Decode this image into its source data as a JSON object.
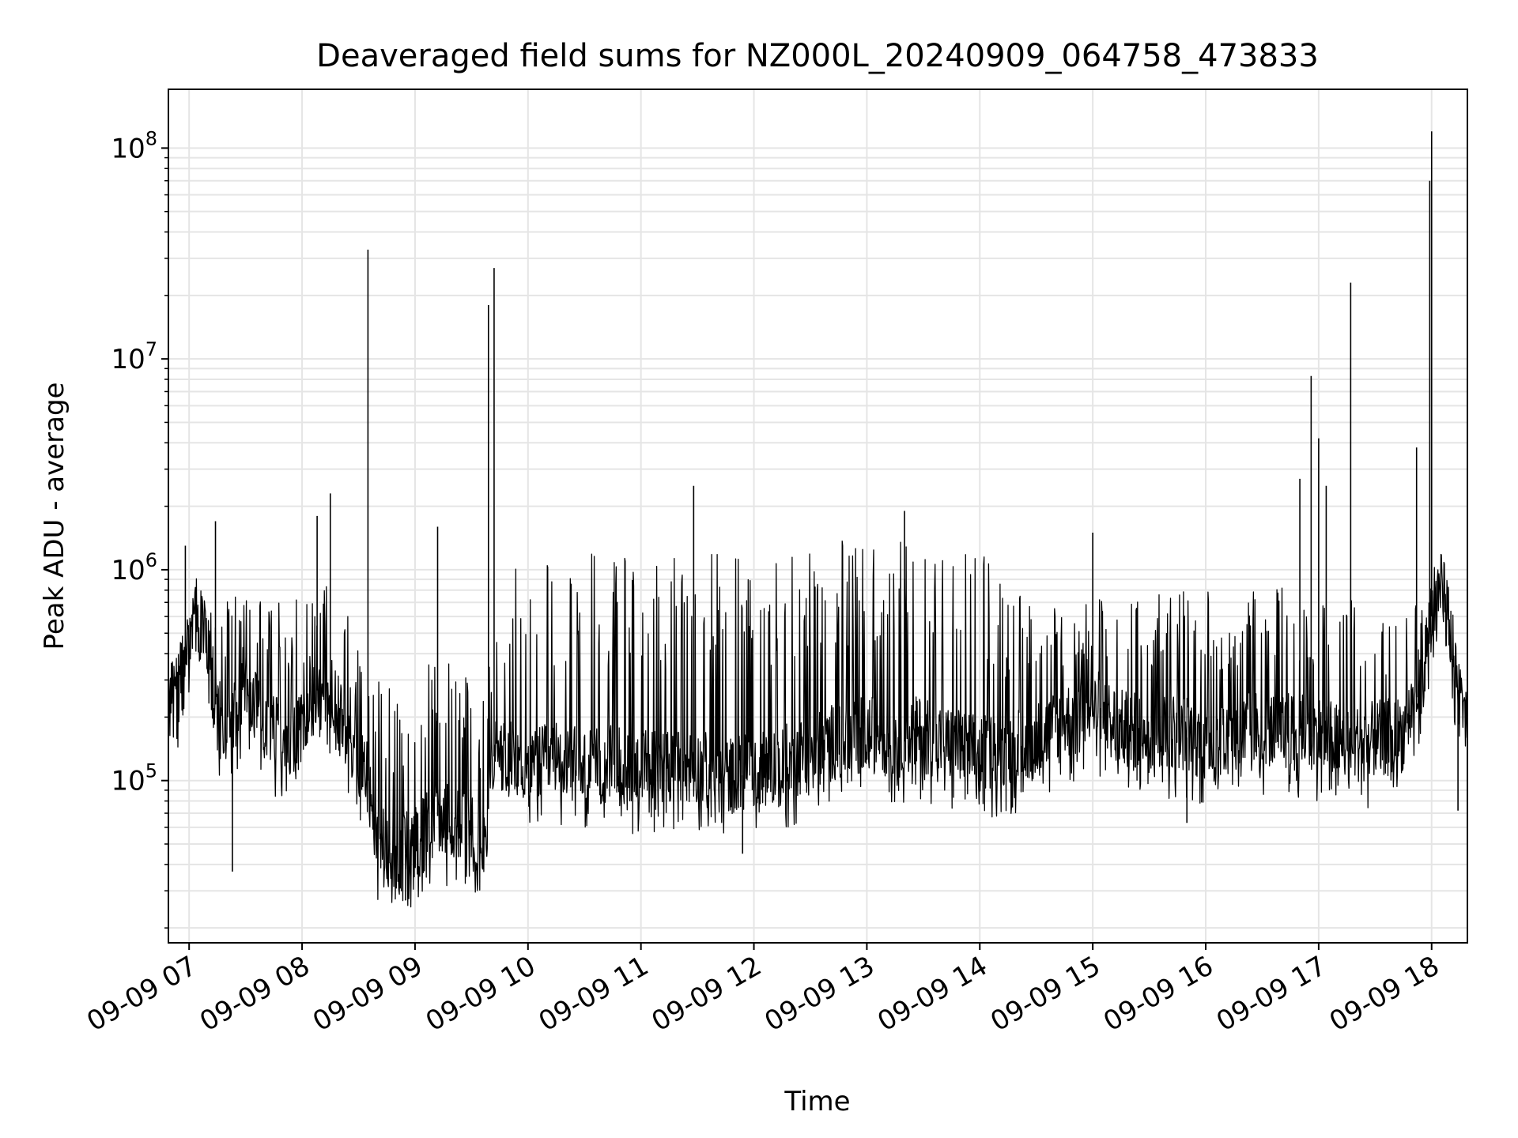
{
  "chart_data": {
    "type": "line",
    "title": "Deaveraged field sums for NZ000L_20240909_064758_473833",
    "xlabel": "Time",
    "ylabel": "Peak ADU - average",
    "yscale": "log",
    "xlim": [
      "2024-09-09 06:49",
      "2024-09-09 18:19"
    ],
    "ylim": [
      17000,
      190000000
    ],
    "grid": true,
    "line_color": "#000000",
    "grid_color": "#e5e5e5",
    "x_ticks": [
      "09-09 07",
      "09-09 08",
      "09-09 09",
      "09-09 10",
      "09-09 11",
      "09-09 12",
      "09-09 13",
      "09-09 14",
      "09-09 15",
      "09-09 16",
      "09-09 17",
      "09-09 18"
    ],
    "y_ticks": [
      {
        "value": 100000,
        "base": "10",
        "exp": "5"
      },
      {
        "value": 1000000,
        "base": "10",
        "exp": "6"
      },
      {
        "value": 10000000,
        "base": "10",
        "exp": "7"
      },
      {
        "value": 100000000,
        "base": "10",
        "exp": "8"
      }
    ],
    "series": [
      {
        "x": [
          "2024-09-09 06:49",
          "2024-09-09 06:55",
          "2024-09-09 07:00",
          "2024-09-09 07:05",
          "2024-09-09 07:10",
          "2024-09-09 07:15",
          "2024-09-09 07:20",
          "2024-09-09 07:25",
          "2024-09-09 07:30",
          "2024-09-09 07:40",
          "2024-09-09 07:50",
          "2024-09-09 08:00",
          "2024-09-09 08:10",
          "2024-09-09 08:20",
          "2024-09-09 08:30",
          "2024-09-09 08:35",
          "2024-09-09 08:40",
          "2024-09-09 08:50",
          "2024-09-09 09:00",
          "2024-09-09 09:10",
          "2024-09-09 09:20",
          "2024-09-09 09:30",
          "2024-09-09 09:37",
          "2024-09-09 09:42",
          "2024-09-09 09:50",
          "2024-09-09 10:00",
          "2024-09-09 10:15",
          "2024-09-09 10:30",
          "2024-09-09 10:45",
          "2024-09-09 11:00",
          "2024-09-09 11:15",
          "2024-09-09 11:30",
          "2024-09-09 11:45",
          "2024-09-09 12:00",
          "2024-09-09 12:15",
          "2024-09-09 12:30",
          "2024-09-09 12:45",
          "2024-09-09 13:00",
          "2024-09-09 13:15",
          "2024-09-09 13:30",
          "2024-09-09 13:45",
          "2024-09-09 14:00",
          "2024-09-09 14:15",
          "2024-09-09 14:30",
          "2024-09-09 14:45",
          "2024-09-09 15:00",
          "2024-09-09 15:15",
          "2024-09-09 15:30",
          "2024-09-09 15:45",
          "2024-09-09 16:00",
          "2024-09-09 16:15",
          "2024-09-09 16:30",
          "2024-09-09 16:45",
          "2024-09-09 17:00",
          "2024-09-09 17:15",
          "2024-09-09 17:30",
          "2024-09-09 17:45",
          "2024-09-09 17:55",
          "2024-09-09 18:00",
          "2024-09-09 18:05",
          "2024-09-09 18:10",
          "2024-09-09 18:15",
          "2024-09-09 18:19"
        ],
        "baseline": [
          300000,
          250000,
          450000,
          700000,
          400000,
          200000,
          150000,
          200000,
          250000,
          180000,
          150000,
          170000,
          300000,
          200000,
          120000,
          100000,
          50000,
          40000,
          50000,
          70000,
          60000,
          55000,
          50000,
          130000,
          120000,
          110000,
          120000,
          110000,
          115000,
          110000,
          115000,
          110000,
          100000,
          110000,
          115000,
          130000,
          150000,
          160000,
          150000,
          160000,
          140000,
          130000,
          135000,
          150000,
          180000,
          220000,
          170000,
          160000,
          165000,
          150000,
          160000,
          170000,
          165000,
          160000,
          140000,
          150000,
          160000,
          300000,
          600000,
          800000,
          500000,
          230000,
          200000
        ],
        "upper": [
          300000,
          450000,
          700000,
          900000,
          700000,
          550000,
          700000,
          800000,
          900000,
          700000,
          800000,
          700000,
          900000,
          700000,
          500000,
          400000,
          300000,
          300000,
          300000,
          400000,
          350000,
          300000,
          280000,
          900000,
          1000000,
          1100000,
          1150000,
          1200000,
          1200000,
          1100000,
          1200000,
          1250000,
          1200000,
          1250000,
          1300000,
          1350000,
          1400000,
          1350000,
          1400000,
          1300000,
          1300000,
          1300000,
          800000,
          700000,
          700000,
          750000,
          800000,
          800000,
          850000,
          800000,
          850000,
          800000,
          850000,
          800000,
          750000,
          700000,
          700000,
          800000,
          900000,
          1000000,
          700000,
          300000,
          220000
        ]
      }
    ],
    "spikes": [
      {
        "x": "2024-09-09 06:58",
        "y": 1300000
      },
      {
        "x": "2024-09-09 07:14",
        "y": 1700000
      },
      {
        "x": "2024-09-09 08:08",
        "y": 1800000
      },
      {
        "x": "2024-09-09 08:15",
        "y": 2300000
      },
      {
        "x": "2024-09-09 08:35",
        "y": 33000000
      },
      {
        "x": "2024-09-09 09:12",
        "y": 1600000
      },
      {
        "x": "2024-09-09 09:39",
        "y": 18000000
      },
      {
        "x": "2024-09-09 09:42",
        "y": 27000000
      },
      {
        "x": "2024-09-09 11:28",
        "y": 2500000
      },
      {
        "x": "2024-09-09 13:20",
        "y": 1900000
      },
      {
        "x": "2024-09-09 15:00",
        "y": 1500000
      },
      {
        "x": "2024-09-09 16:50",
        "y": 2700000
      },
      {
        "x": "2024-09-09 16:56",
        "y": 8300000
      },
      {
        "x": "2024-09-09 17:00",
        "y": 4200000
      },
      {
        "x": "2024-09-09 17:04",
        "y": 2500000
      },
      {
        "x": "2024-09-09 17:17",
        "y": 23000000
      },
      {
        "x": "2024-09-09 17:52",
        "y": 3800000
      },
      {
        "x": "2024-09-09 17:59",
        "y": 70000000
      },
      {
        "x": "2024-09-09 18:00",
        "y": 120000000
      }
    ],
    "dips": [
      {
        "x": "2024-09-09 07:23",
        "y": 37000
      },
      {
        "x": "2024-09-09 08:55",
        "y": 27000
      },
      {
        "x": "2024-09-09 11:54",
        "y": 45000
      },
      {
        "x": "2024-09-09 15:50",
        "y": 63000
      },
      {
        "x": "2024-09-09 18:14",
        "y": 72000
      }
    ]
  }
}
